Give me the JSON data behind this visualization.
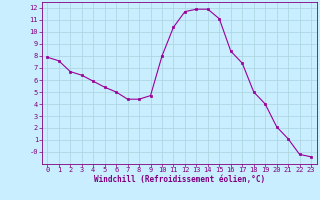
{
  "x": [
    0,
    1,
    2,
    3,
    4,
    5,
    6,
    7,
    8,
    9,
    10,
    11,
    12,
    13,
    14,
    15,
    16,
    17,
    18,
    19,
    20,
    21,
    22,
    23
  ],
  "y": [
    7.9,
    7.6,
    6.7,
    6.4,
    5.9,
    5.4,
    5.0,
    4.4,
    4.4,
    4.7,
    8.0,
    10.4,
    11.7,
    11.9,
    11.9,
    11.1,
    8.4,
    7.4,
    5.0,
    4.0,
    2.1,
    1.1,
    -0.2,
    -0.4
  ],
  "line_color": "#990099",
  "marker_color": "#990099",
  "bg_color": "#c8eeff",
  "grid_color": "#aad4dd",
  "xlabel": "Windchill (Refroidissement éolien,°C)",
  "xlabel_color": "#800080",
  "tick_color": "#800080",
  "xlim": [
    -0.5,
    23.5
  ],
  "ylim": [
    -1.0,
    12.5
  ],
  "yticks": [
    0,
    1,
    2,
    3,
    4,
    5,
    6,
    7,
    8,
    9,
    10,
    11,
    12
  ],
  "ytick_labels": [
    "-0",
    "1",
    "2",
    "3",
    "4",
    "5",
    "6",
    "7",
    "8",
    "9",
    "10",
    "11",
    "12"
  ],
  "xticks": [
    0,
    1,
    2,
    3,
    4,
    5,
    6,
    7,
    8,
    9,
    10,
    11,
    12,
    13,
    14,
    15,
    16,
    17,
    18,
    19,
    20,
    21,
    22,
    23
  ],
  "spine_color": "#800080",
  "tick_fontsize": 5.0,
  "xlabel_fontsize": 5.5
}
